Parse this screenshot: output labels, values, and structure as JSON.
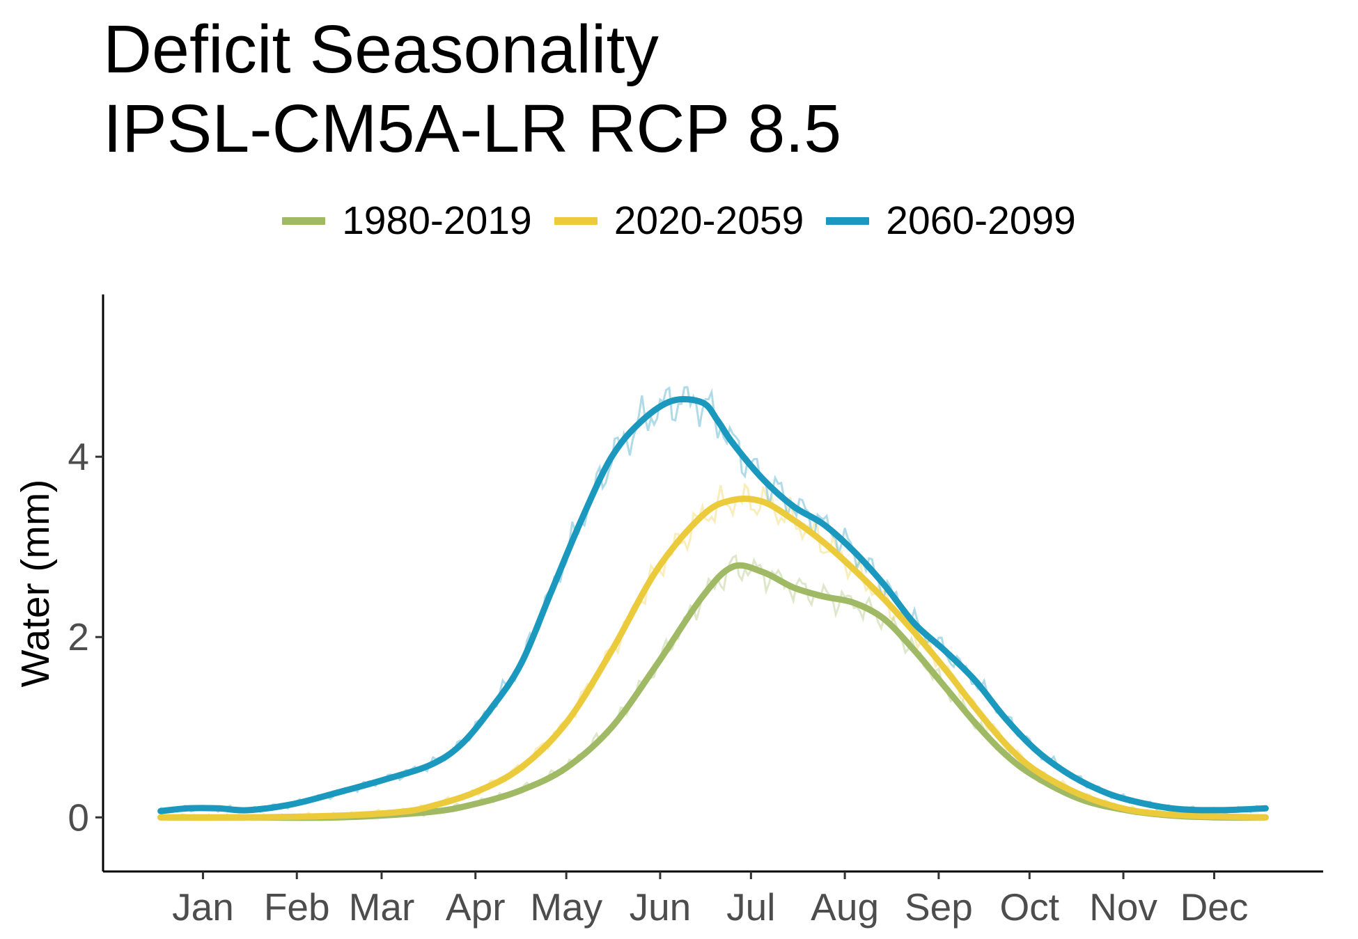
{
  "chart_data": {
    "type": "line",
    "title": "Deficit Seasonality",
    "subtitle": "IPSL-CM5A-LR RCP 8.5",
    "xlabel": "",
    "ylabel": "Water (mm)",
    "ylim": [
      -0.6,
      5.8
    ],
    "y_ticks": [
      0,
      2,
      4
    ],
    "x_ticks": [
      {
        "label": "Jan",
        "x": 15
      },
      {
        "label": "Feb",
        "x": 46
      },
      {
        "label": "Mar",
        "x": 74
      },
      {
        "label": "Apr",
        "x": 105
      },
      {
        "label": "May",
        "x": 135
      },
      {
        "label": "Jun",
        "x": 166
      },
      {
        "label": "Jul",
        "x": 196
      },
      {
        "label": "Aug",
        "x": 227
      },
      {
        "label": "Sep",
        "x": 258
      },
      {
        "label": "Oct",
        "x": 288
      },
      {
        "label": "Nov",
        "x": 319
      },
      {
        "label": "Dec",
        "x": 349
      }
    ],
    "xlim": [
      -18,
      385
    ],
    "x_unit": "day of year",
    "legend_position": "top",
    "grid": false,
    "series": [
      {
        "name": "1980-2019",
        "color": "#a0b964",
        "days": [
          1,
          30,
          60,
          90,
          105,
          120,
          135,
          150,
          165,
          180,
          190,
          200,
          210,
          220,
          230,
          240,
          250,
          260,
          270,
          280,
          290,
          305,
          320,
          335,
          350,
          366
        ],
        "values": [
          0.0,
          0.0,
          0.0,
          0.06,
          0.15,
          0.3,
          0.55,
          1.0,
          1.7,
          2.45,
          2.78,
          2.72,
          2.55,
          2.45,
          2.38,
          2.2,
          1.85,
          1.45,
          1.05,
          0.7,
          0.45,
          0.2,
          0.08,
          0.02,
          0.0,
          0.0
        ]
      },
      {
        "name": "2020-2059",
        "color": "#ebca3c",
        "days": [
          1,
          30,
          60,
          80,
          90,
          105,
          120,
          135,
          150,
          165,
          180,
          190,
          200,
          210,
          220,
          230,
          240,
          250,
          260,
          270,
          280,
          290,
          305,
          320,
          335,
          350,
          366
        ],
        "values": [
          0.0,
          0.0,
          0.02,
          0.06,
          0.12,
          0.28,
          0.55,
          1.05,
          1.85,
          2.75,
          3.35,
          3.52,
          3.5,
          3.3,
          3.05,
          2.75,
          2.42,
          2.05,
          1.65,
          1.22,
          0.82,
          0.52,
          0.25,
          0.09,
          0.03,
          0.01,
          0.0
        ]
      },
      {
        "name": "2060-2099",
        "color": "#1b98be",
        "days": [
          1,
          10,
          20,
          30,
          45,
          60,
          75,
          90,
          100,
          110,
          120,
          130,
          140,
          150,
          160,
          170,
          180,
          185,
          190,
          200,
          210,
          220,
          230,
          240,
          250,
          260,
          270,
          280,
          290,
          300,
          310,
          320,
          335,
          350,
          366
        ],
        "values": [
          0.07,
          0.1,
          0.1,
          0.08,
          0.15,
          0.28,
          0.42,
          0.58,
          0.8,
          1.2,
          1.7,
          2.5,
          3.3,
          4.0,
          4.4,
          4.62,
          4.6,
          4.4,
          4.15,
          3.75,
          3.45,
          3.25,
          2.95,
          2.58,
          2.15,
          1.85,
          1.52,
          1.1,
          0.75,
          0.5,
          0.32,
          0.2,
          0.1,
          0.08,
          0.1
        ]
      }
    ]
  }
}
